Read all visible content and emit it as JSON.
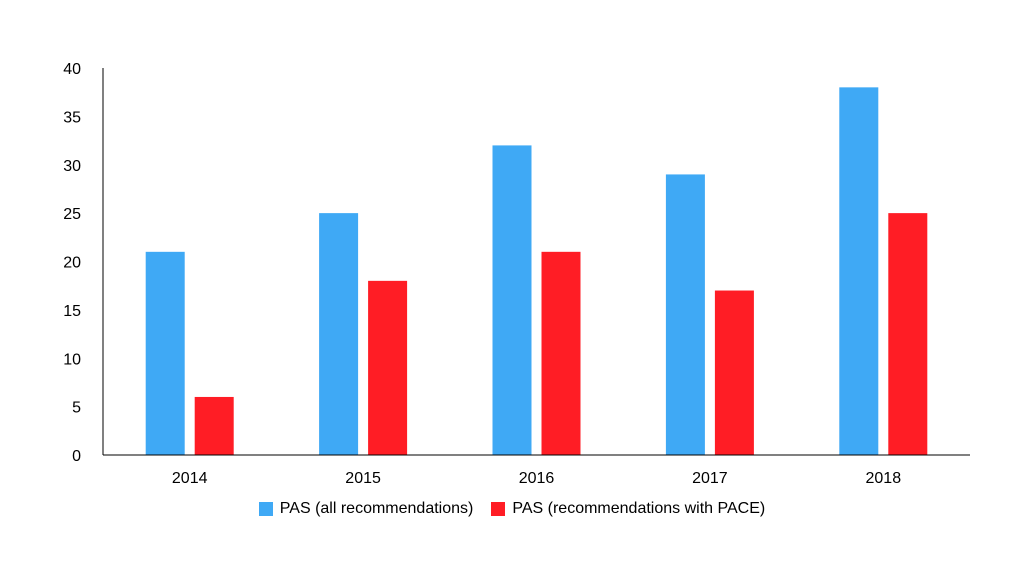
{
  "chart_data": {
    "type": "bar",
    "title": "",
    "xlabel": "",
    "ylabel": "",
    "categories": [
      "2014",
      "2015",
      "2016",
      "2017",
      "2018"
    ],
    "series": [
      {
        "name": "PAS (all recommendations)",
        "color": "#3fa9f5",
        "values": [
          21,
          25,
          32,
          29,
          38
        ]
      },
      {
        "name": "PAS (recommendations with PACE)",
        "color": "#ff1d25",
        "values": [
          6,
          18,
          21,
          17,
          25
        ]
      }
    ],
    "ylim": [
      0,
      40
    ],
    "yticks": [
      "0",
      "5",
      "10",
      "15",
      "20",
      "25",
      "30",
      "35",
      "40"
    ],
    "grid": false,
    "legend_position": "bottom"
  }
}
